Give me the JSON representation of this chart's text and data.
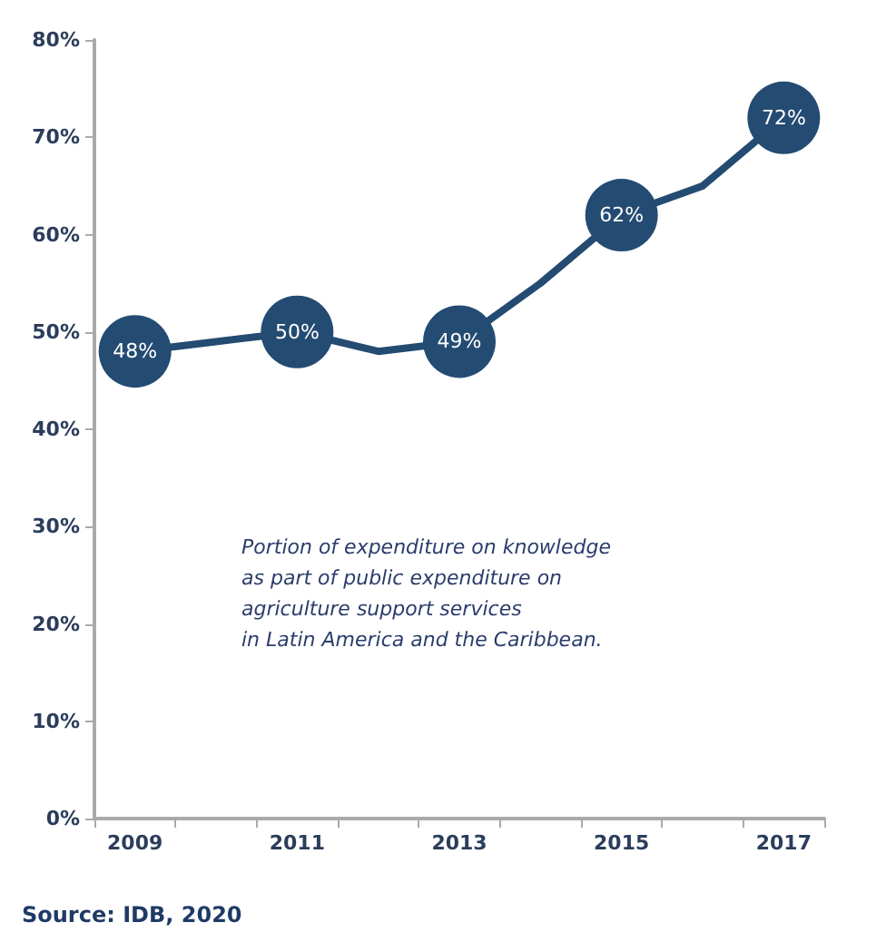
{
  "chart_data": {
    "type": "line",
    "categories": [
      "2009",
      null,
      "2011",
      null,
      "2013",
      null,
      "2015",
      null,
      "2017"
    ],
    "series": [
      {
        "color": "#244b72",
        "values": [
          48,
          49,
          50,
          48,
          49,
          55,
          62,
          65,
          72
        ],
        "value_labels": [
          "48%",
          null,
          "50%",
          null,
          "49%",
          null,
          "62%",
          null,
          "72%"
        ]
      }
    ],
    "ylim": [
      0,
      80
    ],
    "yticks": [
      {
        "value": 0,
        "label": "0%"
      },
      {
        "value": 10,
        "label": "10%"
      },
      {
        "value": 20,
        "label": "20%"
      },
      {
        "value": 30,
        "label": "30%"
      },
      {
        "value": 40,
        "label": "40%"
      },
      {
        "value": 50,
        "label": "50%"
      },
      {
        "value": 60,
        "label": "60%"
      },
      {
        "value": 70,
        "label": "70%"
      },
      {
        "value": 80,
        "label": "80%"
      }
    ],
    "grid": false,
    "marker": "circle",
    "line_style": "solid",
    "annotations": [
      "Portion of expenditure on knowledge\nas part of public expenditure on\nagriculture support services\nin Latin America and the Caribbean.",
      "Source: IDB, 2020"
    ]
  }
}
